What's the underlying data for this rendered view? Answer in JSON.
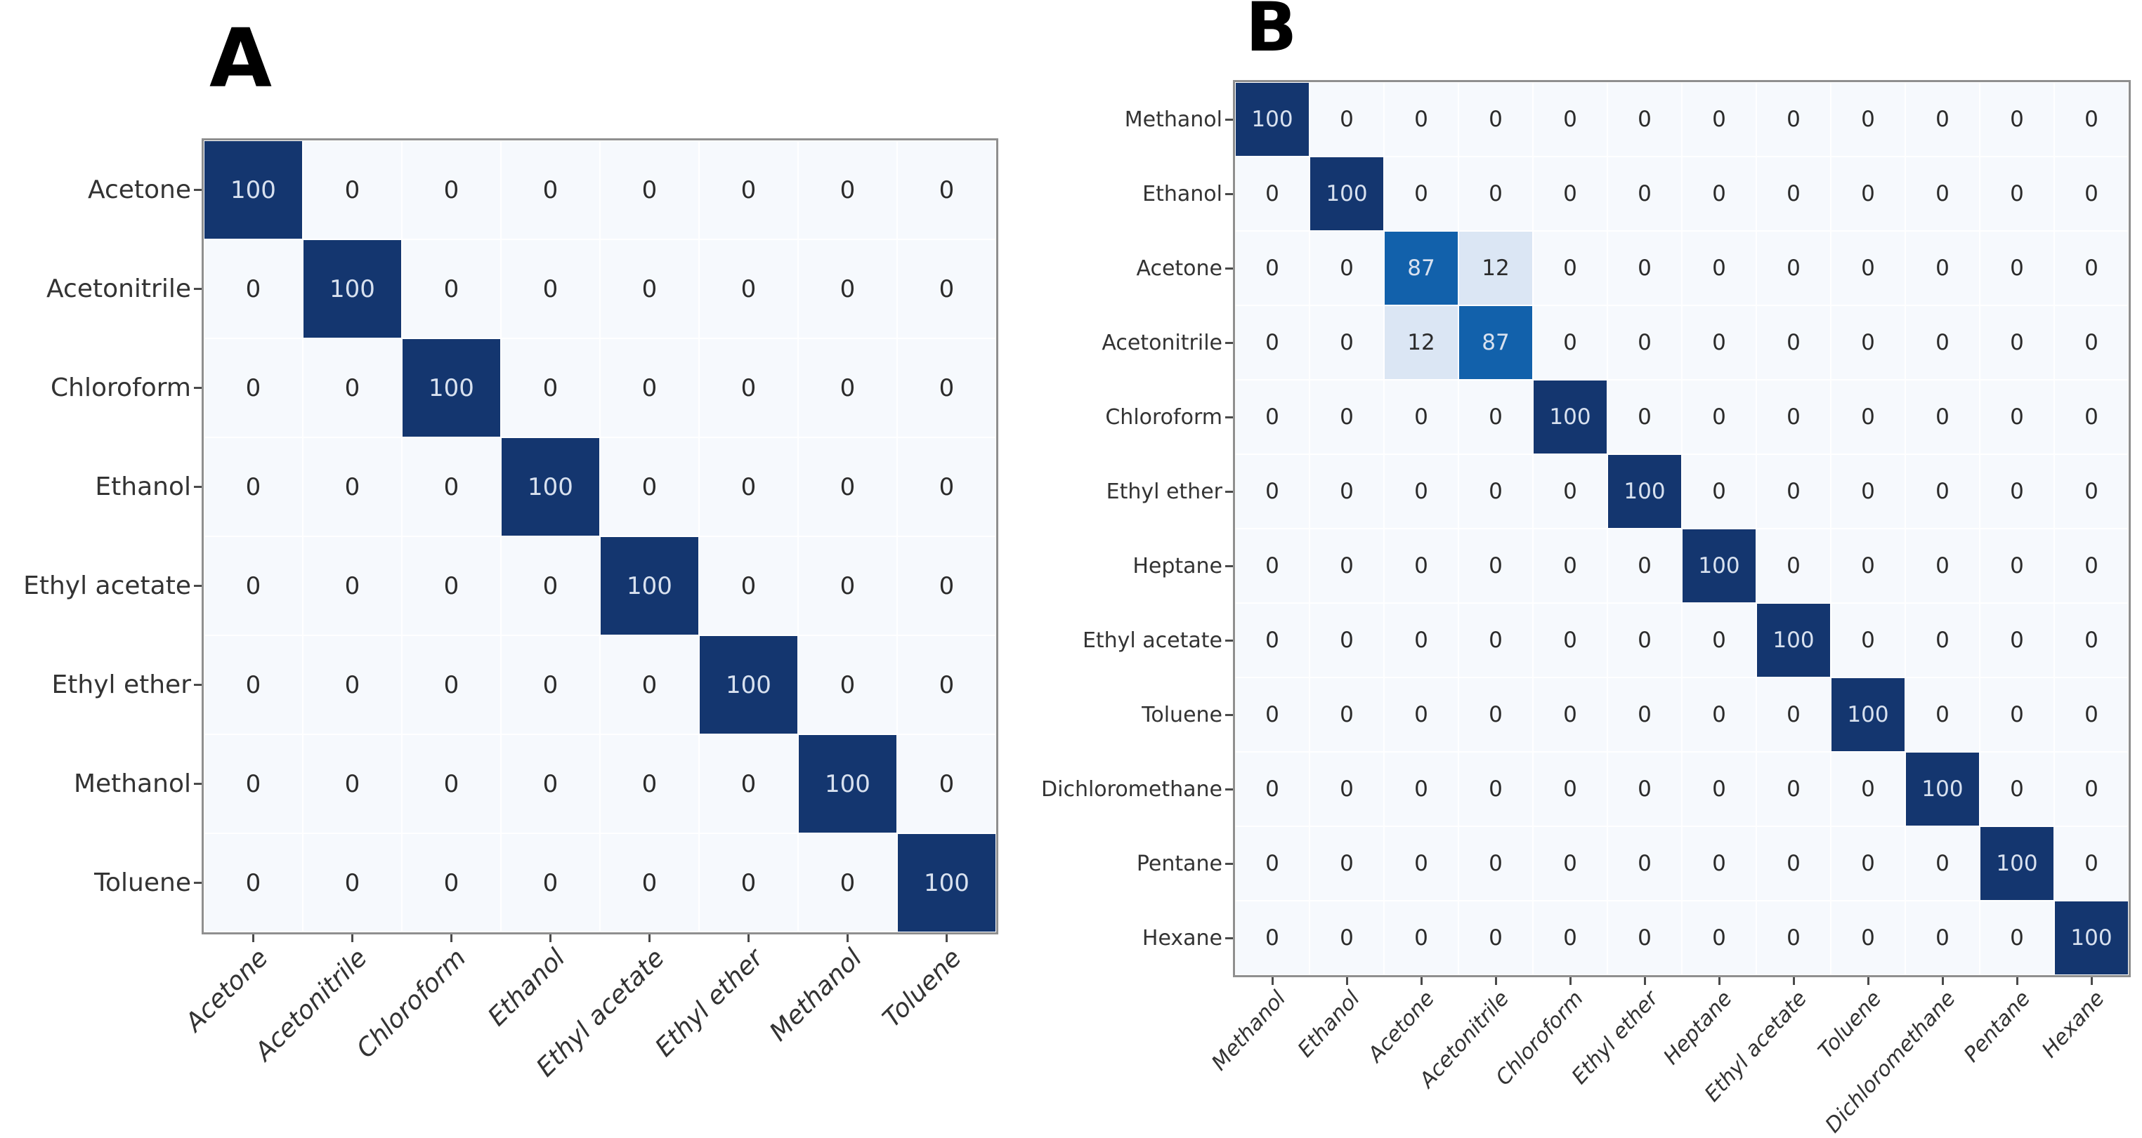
{
  "figure": {
    "background": "#ffffff",
    "panel_labels": [
      "A",
      "B"
    ]
  },
  "colors": {
    "background": "#ffffff",
    "cell_values": {
      "0": "#f6f9fd",
      "12": "#dbe6f4",
      "87": "#1261ab",
      "100": "#14366f"
    },
    "value_text_dark": "#2b2b2b",
    "value_text_light": "#d8e1ef",
    "light_text_min_value": 50,
    "tick_label": "#333333",
    "spine": "#8f8f8f",
    "tick_mark": "#4a4a4a",
    "panel_label": "#000000"
  },
  "chart_data": [
    {
      "type": "heatmap",
      "panel_label": "A",
      "colormap": "Blues",
      "value_range": [
        0,
        100
      ],
      "grid": false,
      "x_tick_label_style": "italic",
      "x_tick_label_rotation_deg": 45,
      "y_tick_label_style": "upright",
      "x_categories": [
        "Acetone",
        "Acetonitrile",
        "Chloroform",
        "Ethanol",
        "Ethyl acetate",
        "Ethyl ether",
        "Methanol",
        "Toluene"
      ],
      "y_categories": [
        "Acetone",
        "Acetonitrile",
        "Chloroform",
        "Ethanol",
        "Ethyl acetate",
        "Ethyl ether",
        "Methanol",
        "Toluene"
      ],
      "values": [
        [
          100,
          0,
          0,
          0,
          0,
          0,
          0,
          0
        ],
        [
          0,
          100,
          0,
          0,
          0,
          0,
          0,
          0
        ],
        [
          0,
          0,
          100,
          0,
          0,
          0,
          0,
          0
        ],
        [
          0,
          0,
          0,
          100,
          0,
          0,
          0,
          0
        ],
        [
          0,
          0,
          0,
          0,
          100,
          0,
          0,
          0
        ],
        [
          0,
          0,
          0,
          0,
          0,
          100,
          0,
          0
        ],
        [
          0,
          0,
          0,
          0,
          0,
          0,
          100,
          0
        ],
        [
          0,
          0,
          0,
          0,
          0,
          0,
          0,
          100
        ]
      ]
    },
    {
      "type": "heatmap",
      "panel_label": "B",
      "colormap": "Blues",
      "value_range": [
        0,
        100
      ],
      "grid": false,
      "x_tick_label_style": "italic",
      "x_tick_label_rotation_deg": 48,
      "y_tick_label_style": "upright",
      "x_categories": [
        "Methanol",
        "Ethanol",
        "Acetone",
        "Acetonitrile",
        "Chloroform",
        "Ethyl ether",
        "Heptane",
        "Ethyl acetate",
        "Toluene",
        "Dichloromethane",
        "Pentane",
        "Hexane"
      ],
      "y_categories": [
        "Methanol",
        "Ethanol",
        "Acetone",
        "Acetonitrile",
        "Chloroform",
        "Ethyl ether",
        "Heptane",
        "Ethyl acetate",
        "Toluene",
        "Dichloromethane",
        "Pentane",
        "Hexane"
      ],
      "values": [
        [
          100,
          0,
          0,
          0,
          0,
          0,
          0,
          0,
          0,
          0,
          0,
          0
        ],
        [
          0,
          100,
          0,
          0,
          0,
          0,
          0,
          0,
          0,
          0,
          0,
          0
        ],
        [
          0,
          0,
          87,
          12,
          0,
          0,
          0,
          0,
          0,
          0,
          0,
          0
        ],
        [
          0,
          0,
          12,
          87,
          0,
          0,
          0,
          0,
          0,
          0,
          0,
          0
        ],
        [
          0,
          0,
          0,
          0,
          100,
          0,
          0,
          0,
          0,
          0,
          0,
          0
        ],
        [
          0,
          0,
          0,
          0,
          0,
          100,
          0,
          0,
          0,
          0,
          0,
          0
        ],
        [
          0,
          0,
          0,
          0,
          0,
          0,
          100,
          0,
          0,
          0,
          0,
          0
        ],
        [
          0,
          0,
          0,
          0,
          0,
          0,
          0,
          100,
          0,
          0,
          0,
          0
        ],
        [
          0,
          0,
          0,
          0,
          0,
          0,
          0,
          0,
          100,
          0,
          0,
          0
        ],
        [
          0,
          0,
          0,
          0,
          0,
          0,
          0,
          0,
          0,
          100,
          0,
          0
        ],
        [
          0,
          0,
          0,
          0,
          0,
          0,
          0,
          0,
          0,
          0,
          100,
          0
        ],
        [
          0,
          0,
          0,
          0,
          0,
          0,
          0,
          0,
          0,
          0,
          0,
          100
        ]
      ]
    }
  ]
}
